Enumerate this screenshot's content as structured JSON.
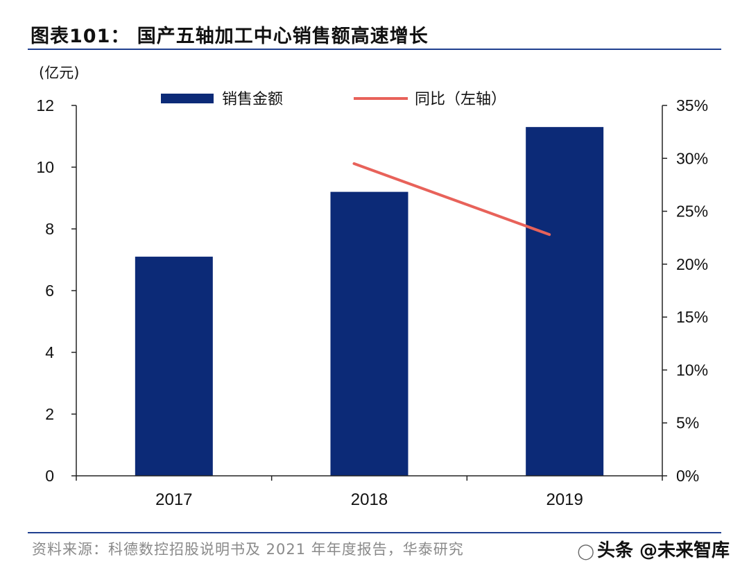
{
  "title": "图表101： 国产五轴加工中心销售额高速增长",
  "source": "资料来源：科德数控招股说明书及 2021 年年度报告，华泰研究",
  "watermark": "头条 @未来智库",
  "colors": {
    "bar": "#0c2a77",
    "line": "#e8625a",
    "axis": "#222222",
    "rule": "#1f3f8f"
  },
  "chart_data": {
    "type": "bar",
    "unit_label": "(亿元)",
    "categories": [
      "2017",
      "2018",
      "2019"
    ],
    "series": [
      {
        "name": "销售金额",
        "type": "bar",
        "axis": "left",
        "values": [
          7.1,
          9.2,
          11.3
        ]
      },
      {
        "name": "同比（左轴）",
        "type": "line",
        "axis": "right",
        "values": [
          null,
          29.5,
          22.8
        ]
      }
    ],
    "y_left": {
      "min": 0,
      "max": 12,
      "ticks": [
        "0",
        "2",
        "4",
        "6",
        "8",
        "10",
        "12"
      ]
    },
    "y_right": {
      "min": 0,
      "max": 35,
      "ticks": [
        "0%",
        "5%",
        "10%",
        "15%",
        "20%",
        "25%",
        "30%",
        "35%"
      ]
    },
    "legend_position": "top",
    "grid": false
  }
}
